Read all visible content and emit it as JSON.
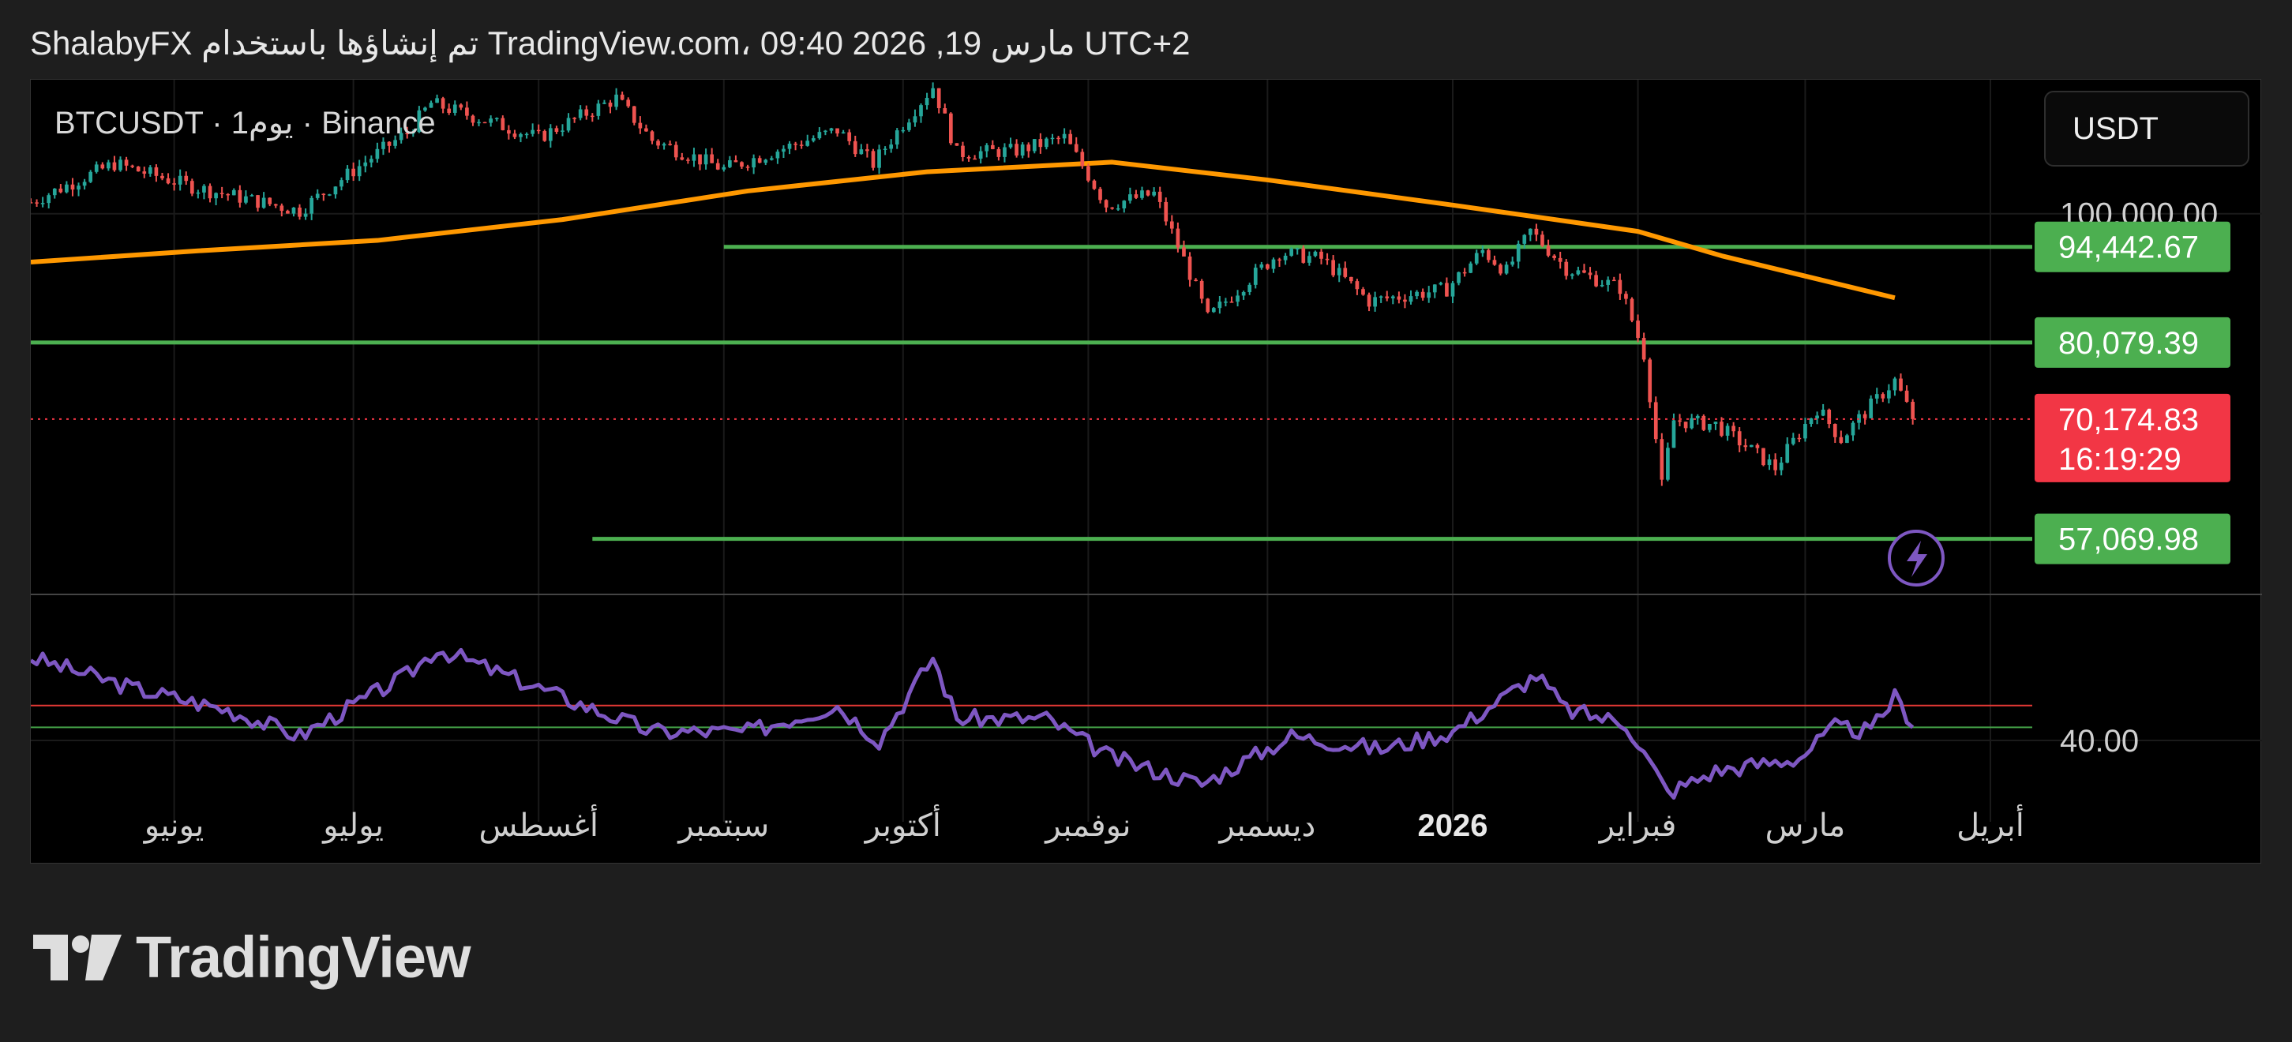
{
  "header": {
    "attribution": "ShalabyFX تم إنشاؤها باستخدام TradingView.com، 09:40 2026 ,19 مارس UTC+2"
  },
  "symbol_label": "BTCUSDT · 1يوم · Binance",
  "currency": "USDT",
  "footer": {
    "brand": "TradingView"
  },
  "colors": {
    "up": "#26a69a",
    "down": "#ef5350",
    "sma": "#ff9800",
    "level": "#4caf50",
    "rsi": "#7e57c2",
    "rsi_upper": "#e53935",
    "rsi_lower": "#43a047",
    "price_badge": "#f23645"
  },
  "chart_data": {
    "type": "candlestick",
    "symbol": "BTCUSDT",
    "interval": "1D",
    "exchange": "Binance",
    "y_scale": "log",
    "ylim": [
      52000,
      126000
    ],
    "price_ticks": [
      {
        "value": 100000,
        "label": "100,000.00"
      }
    ],
    "x_ticks": [
      {
        "date": "2025-06-01",
        "label": "يونيو",
        "bold": false
      },
      {
        "date": "2025-07-01",
        "label": "يوليو",
        "bold": false
      },
      {
        "date": "2025-08-01",
        "label": "أغسطس",
        "bold": false
      },
      {
        "date": "2025-09-01",
        "label": "سبتمبر",
        "bold": false
      },
      {
        "date": "2025-10-01",
        "label": "أكتوبر",
        "bold": false
      },
      {
        "date": "2025-11-01",
        "label": "نوفمبر",
        "bold": false
      },
      {
        "date": "2025-12-01",
        "label": "ديسمبر",
        "bold": false
      },
      {
        "date": "2026-01-01",
        "label": "2026",
        "bold": true
      },
      {
        "date": "2026-02-01",
        "label": "فبراير",
        "bold": false
      },
      {
        "date": "2026-03-01",
        "label": "مارس",
        "bold": false
      },
      {
        "date": "2026-04-01",
        "label": "أبريل",
        "bold": false
      }
    ],
    "xlim": [
      "2025-05-08",
      "2026-04-08"
    ],
    "price_path": [
      [
        "2025-05-08",
        102000
      ],
      [
        "2025-05-22",
        109000
      ],
      [
        "2025-06-05",
        104500
      ],
      [
        "2025-06-22",
        100500
      ],
      [
        "2025-07-10",
        115000
      ],
      [
        "2025-07-14",
        121000
      ],
      [
        "2025-08-01",
        114000
      ],
      [
        "2025-08-14",
        122000
      ],
      [
        "2025-08-20",
        113500
      ],
      [
        "2025-09-01",
        108000
      ],
      [
        "2025-09-20",
        115500
      ],
      [
        "2025-09-26",
        109000
      ],
      [
        "2025-10-06",
        124500
      ],
      [
        "2025-10-10",
        111000
      ],
      [
        "2025-10-20",
        111500
      ],
      [
        "2025-10-28",
        114000
      ],
      [
        "2025-11-04",
        101500
      ],
      [
        "2025-11-12",
        103500
      ],
      [
        "2025-11-21",
        83500
      ],
      [
        "2025-12-03",
        93500
      ],
      [
        "2025-12-10",
        92500
      ],
      [
        "2025-12-18",
        86000
      ],
      [
        "2025-12-31",
        87800
      ],
      [
        "2026-01-06",
        93800
      ],
      [
        "2026-01-10",
        90500
      ],
      [
        "2026-01-14",
        97000
      ],
      [
        "2026-01-20",
        91000
      ],
      [
        "2026-01-29",
        88000
      ],
      [
        "2026-02-02",
        78500
      ],
      [
        "2026-02-05",
        62500
      ],
      [
        "2026-02-07",
        70000
      ],
      [
        "2026-02-14",
        69500
      ],
      [
        "2026-02-24",
        64500
      ],
      [
        "2026-03-03",
        71500
      ],
      [
        "2026-03-07",
        67800
      ],
      [
        "2026-03-16",
        75000
      ],
      [
        "2026-03-19",
        70174.83
      ]
    ],
    "series": [
      {
        "name": "SMA",
        "type": "line",
        "points": [
          [
            "2025-05-08",
            92000
          ],
          [
            "2025-06-05",
            93800
          ],
          [
            "2025-07-05",
            95500
          ],
          [
            "2025-08-05",
            99000
          ],
          [
            "2025-09-05",
            104000
          ],
          [
            "2025-10-05",
            107500
          ],
          [
            "2025-11-05",
            109300
          ],
          [
            "2025-12-01",
            106000
          ],
          [
            "2026-01-01",
            101500
          ],
          [
            "2026-02-01",
            97000
          ],
          [
            "2026-02-15",
            93000
          ],
          [
            "2026-03-16",
            86500
          ]
        ]
      }
    ],
    "horizontal_levels": [
      {
        "value": 94442.67,
        "label": "94,442.67",
        "from": "2025-09-01"
      },
      {
        "value": 80079.39,
        "label": "80,079.39",
        "from": "2025-05-08"
      },
      {
        "value": 57069.98,
        "label": "57,069.98",
        "from": "2025-08-10"
      }
    ],
    "last_price": {
      "value": 70174.83,
      "label": "70,174.83",
      "countdown": "16:19:29"
    },
    "rsi": {
      "ylim": [
        25,
        72
      ],
      "upper_level": 48,
      "lower_level": 43,
      "ticks": [
        {
          "value": 40,
          "label": "40.00"
        }
      ],
      "path": [
        [
          "2025-05-08",
          59
        ],
        [
          "2025-05-25",
          52
        ],
        [
          "2025-06-10",
          47
        ],
        [
          "2025-06-22",
          41
        ],
        [
          "2025-07-10",
          55
        ],
        [
          "2025-07-15",
          61
        ],
        [
          "2025-08-01",
          52
        ],
        [
          "2025-08-20",
          42
        ],
        [
          "2025-09-05",
          42
        ],
        [
          "2025-09-20",
          48
        ],
        [
          "2025-09-27",
          40
        ],
        [
          "2025-10-06",
          59
        ],
        [
          "2025-10-10",
          45
        ],
        [
          "2025-10-25",
          45
        ],
        [
          "2025-11-05",
          36
        ],
        [
          "2025-11-20",
          30
        ],
        [
          "2025-12-05",
          41
        ],
        [
          "2025-12-20",
          38
        ],
        [
          "2026-01-01",
          42
        ],
        [
          "2026-01-15",
          55
        ],
        [
          "2026-01-20",
          47
        ],
        [
          "2026-01-30",
          44
        ],
        [
          "2026-02-06",
          28
        ],
        [
          "2026-02-14",
          33
        ],
        [
          "2026-02-28",
          36
        ],
        [
          "2026-03-06",
          43
        ],
        [
          "2026-03-12",
          42
        ],
        [
          "2026-03-16",
          50
        ],
        [
          "2026-03-19",
          44
        ]
      ]
    }
  }
}
